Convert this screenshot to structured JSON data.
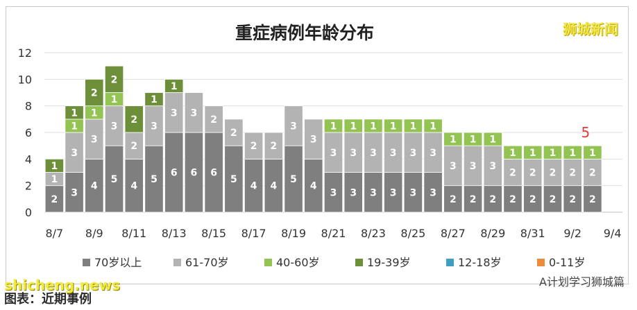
{
  "brand": "狮城新闻",
  "footer": {
    "watermark": "shicheng.news",
    "source": "图表：近期事例",
    "account": "A计划学习狮城篇"
  },
  "chart_data": {
    "type": "bar",
    "stacked": true,
    "title": "重症病例年龄分布",
    "ylim": [
      0,
      12
    ],
    "yticks": [
      0,
      2,
      4,
      6,
      8,
      10,
      12
    ],
    "categories": [
      "8/7",
      "8/8",
      "8/9",
      "8/10",
      "8/11",
      "8/12",
      "8/13",
      "8/14",
      "8/15",
      "8/16",
      "8/17",
      "8/18",
      "8/19",
      "8/20",
      "8/21",
      "8/22",
      "8/23",
      "8/24",
      "8/25",
      "8/26",
      "8/27",
      "8/28",
      "8/29",
      "8/30",
      "8/31",
      "9/1",
      "9/2",
      "9/3",
      "9/4"
    ],
    "xtick_labels": [
      "8/7",
      "8/9",
      "8/11",
      "8/13",
      "8/15",
      "8/17",
      "8/19",
      "8/21",
      "8/23",
      "8/25",
      "8/27",
      "8/29",
      "8/31",
      "9/2",
      "9/4"
    ],
    "series": [
      {
        "name": "70岁以上",
        "color": "#7f7f7f",
        "values": [
          2,
          3,
          4,
          5,
          4,
          5,
          6,
          6,
          6,
          5,
          4,
          4,
          5,
          4,
          3,
          3,
          3,
          3,
          3,
          3,
          2,
          2,
          2,
          2,
          2,
          2,
          2,
          2,
          0
        ]
      },
      {
        "name": "61-70岁",
        "color": "#b3b3b3",
        "values": [
          1,
          3,
          3,
          3,
          2,
          3,
          3,
          3,
          2,
          2,
          2,
          2,
          3,
          3,
          3,
          3,
          3,
          3,
          3,
          3,
          3,
          3,
          3,
          2,
          2,
          2,
          2,
          2,
          0
        ]
      },
      {
        "name": "40-60岁",
        "color": "#92c353",
        "values": [
          0,
          1,
          1,
          1,
          0,
          0,
          0,
          0,
          0,
          0,
          0,
          0,
          0,
          0,
          1,
          1,
          1,
          1,
          1,
          1,
          1,
          1,
          1,
          1,
          1,
          1,
          1,
          1,
          0
        ]
      },
      {
        "name": "19-39岁",
        "color": "#6e8f3a",
        "values": [
          1,
          1,
          2,
          2,
          2,
          1,
          1,
          0,
          0,
          0,
          0,
          0,
          0,
          0,
          0,
          0,
          0,
          0,
          0,
          0,
          0,
          0,
          0,
          0,
          0,
          0,
          0,
          0,
          0
        ]
      },
      {
        "name": "12-18岁",
        "color": "#3f9fbf",
        "values": [
          0,
          0,
          0,
          0,
          0,
          0,
          0,
          0,
          0,
          0,
          0,
          0,
          0,
          0,
          0,
          0,
          0,
          0,
          0,
          0,
          0,
          0,
          0,
          0,
          0,
          0,
          0,
          0,
          0
        ]
      },
      {
        "name": "0-11岁",
        "color": "#ed8b3c",
        "values": [
          0,
          0,
          0,
          0,
          0,
          0,
          0,
          0,
          0,
          0,
          0,
          0,
          0,
          0,
          0,
          0,
          0,
          0,
          0,
          0,
          0,
          0,
          0,
          0,
          0,
          0,
          0,
          0,
          0
        ]
      }
    ],
    "annotations": [
      {
        "x": "9/3",
        "text": "5",
        "color": "#e03c3c"
      }
    ],
    "grid": true,
    "legend": "bottom"
  }
}
